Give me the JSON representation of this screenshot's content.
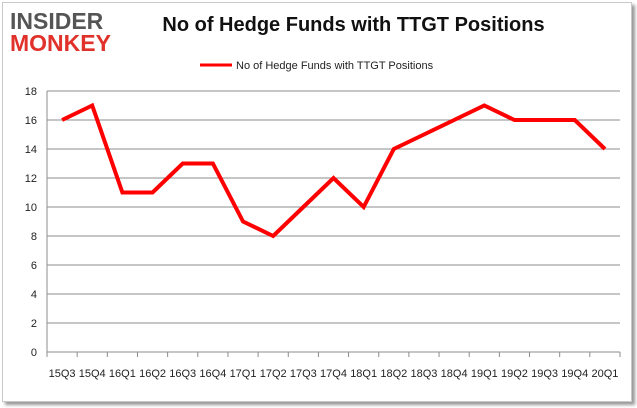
{
  "logo": {
    "line1": "INSIDER",
    "line2": "MONKEY"
  },
  "chart_data": {
    "type": "line",
    "title": "No of Hedge Funds with TTGT Positions",
    "categories": [
      "15Q3",
      "15Q4",
      "16Q1",
      "16Q2",
      "16Q3",
      "16Q4",
      "17Q1",
      "17Q2",
      "17Q3",
      "17Q4",
      "18Q1",
      "18Q2",
      "18Q3",
      "18Q4",
      "19Q1",
      "19Q2",
      "19Q3",
      "19Q4",
      "20Q1"
    ],
    "series": [
      {
        "name": "No of Hedge Funds with TTGT Positions",
        "color": "#ff0000",
        "values": [
          16,
          17,
          11,
          11,
          13,
          13,
          9,
          8,
          10,
          12,
          10,
          14,
          15,
          16,
          17,
          16,
          16,
          16,
          14
        ]
      }
    ],
    "yticks": [
      "0",
      "2",
      "4",
      "6",
      "8",
      "10",
      "12",
      "14",
      "16",
      "18"
    ],
    "ylim": [
      0,
      18
    ],
    "xlabel": "",
    "ylabel": "",
    "grid": true,
    "legend": "top-center"
  }
}
